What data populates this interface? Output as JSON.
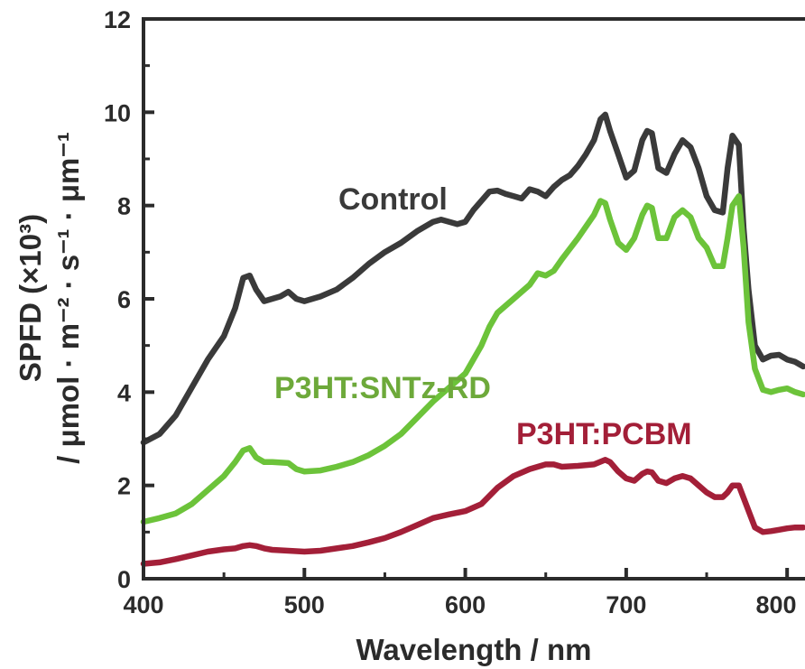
{
  "chart_data": {
    "type": "line",
    "xlabel": "Wavelength / nm",
    "ylabel_line1": "SPFD (×10³)",
    "ylabel_line2": "/ μmol · m⁻² · s⁻¹ · μm⁻¹",
    "xlim": [
      400,
      810
    ],
    "ylim": [
      0,
      12
    ],
    "xticks": [
      400,
      500,
      600,
      700,
      800
    ],
    "yticks": [
      0,
      2,
      4,
      6,
      8,
      10,
      12
    ],
    "xtick_labels": [
      "400",
      "500",
      "600",
      "700",
      "800"
    ],
    "ytick_labels": [
      "0",
      "2",
      "4",
      "6",
      "8",
      "10",
      "12"
    ],
    "grid": false,
    "series": [
      {
        "name": "Control",
        "color": "#3a3a3a",
        "x": [
          400,
          410,
          420,
          430,
          440,
          450,
          457,
          462,
          466,
          470,
          475,
          480,
          485,
          490,
          495,
          500,
          510,
          520,
          530,
          540,
          550,
          560,
          570,
          580,
          585,
          590,
          595,
          600,
          605,
          610,
          615,
          620,
          625,
          630,
          635,
          640,
          645,
          650,
          655,
          660,
          665,
          670,
          675,
          680,
          684,
          687,
          690,
          695,
          700,
          705,
          710,
          713,
          716,
          720,
          725,
          730,
          735,
          740,
          745,
          750,
          755,
          760,
          763,
          766,
          770,
          773,
          776,
          780,
          785,
          790,
          795,
          800,
          805,
          810
        ],
        "y": [
          2.92,
          3.1,
          3.5,
          4.1,
          4.7,
          5.2,
          5.8,
          6.45,
          6.5,
          6.2,
          5.95,
          6.0,
          6.05,
          6.15,
          6.0,
          5.95,
          6.05,
          6.2,
          6.45,
          6.75,
          7.0,
          7.2,
          7.45,
          7.65,
          7.7,
          7.65,
          7.6,
          7.65,
          7.9,
          8.1,
          8.3,
          8.32,
          8.25,
          8.2,
          8.15,
          8.35,
          8.3,
          8.2,
          8.4,
          8.55,
          8.65,
          8.85,
          9.1,
          9.4,
          9.85,
          9.95,
          9.6,
          9.1,
          8.6,
          8.75,
          9.4,
          9.6,
          9.55,
          8.8,
          8.7,
          9.1,
          9.4,
          9.25,
          8.8,
          8.2,
          7.9,
          7.85,
          8.8,
          9.5,
          9.3,
          7.5,
          6.2,
          5.0,
          4.7,
          4.78,
          4.8,
          4.7,
          4.65,
          4.55
        ]
      },
      {
        "name": "P3HT:SNTz-RD",
        "color": "#6cc33a",
        "x": [
          400,
          410,
          420,
          430,
          440,
          450,
          457,
          462,
          466,
          470,
          475,
          480,
          490,
          495,
          500,
          510,
          520,
          530,
          540,
          550,
          560,
          570,
          580,
          590,
          600,
          610,
          615,
          620,
          630,
          640,
          645,
          650,
          655,
          660,
          670,
          680,
          684,
          687,
          690,
          695,
          700,
          705,
          710,
          713,
          716,
          720,
          725,
          730,
          735,
          740,
          745,
          750,
          755,
          760,
          763,
          766,
          770,
          773,
          776,
          780,
          785,
          790,
          795,
          800,
          805,
          810
        ],
        "y": [
          1.22,
          1.3,
          1.4,
          1.6,
          1.9,
          2.2,
          2.5,
          2.75,
          2.8,
          2.6,
          2.5,
          2.5,
          2.48,
          2.35,
          2.3,
          2.32,
          2.4,
          2.5,
          2.65,
          2.85,
          3.1,
          3.45,
          3.8,
          4.1,
          4.4,
          5.0,
          5.4,
          5.7,
          6.0,
          6.3,
          6.55,
          6.5,
          6.6,
          6.85,
          7.3,
          7.8,
          8.1,
          8.05,
          7.7,
          7.2,
          7.05,
          7.3,
          7.8,
          8.0,
          7.95,
          7.3,
          7.3,
          7.75,
          7.9,
          7.75,
          7.3,
          7.1,
          6.7,
          6.7,
          7.3,
          8.0,
          8.2,
          7.1,
          5.5,
          4.5,
          4.05,
          4.0,
          4.05,
          4.08,
          4.0,
          3.95
        ]
      },
      {
        "name": "P3HT:PCBM",
        "color": "#a31f38",
        "x": [
          400,
          410,
          420,
          430,
          440,
          450,
          457,
          462,
          466,
          470,
          475,
          480,
          490,
          500,
          510,
          520,
          530,
          540,
          550,
          560,
          570,
          580,
          590,
          600,
          610,
          620,
          630,
          640,
          650,
          655,
          660,
          670,
          680,
          687,
          690,
          695,
          700,
          705,
          710,
          713,
          716,
          720,
          725,
          730,
          735,
          740,
          745,
          750,
          755,
          760,
          763,
          766,
          770,
          775,
          780,
          785,
          790,
          795,
          800,
          805,
          810
        ],
        "y": [
          0.32,
          0.35,
          0.42,
          0.5,
          0.58,
          0.63,
          0.65,
          0.7,
          0.72,
          0.7,
          0.65,
          0.62,
          0.6,
          0.58,
          0.6,
          0.65,
          0.7,
          0.78,
          0.87,
          1.0,
          1.15,
          1.3,
          1.38,
          1.45,
          1.6,
          1.95,
          2.2,
          2.35,
          2.45,
          2.45,
          2.4,
          2.42,
          2.45,
          2.55,
          2.5,
          2.3,
          2.15,
          2.1,
          2.25,
          2.3,
          2.28,
          2.1,
          2.05,
          2.15,
          2.2,
          2.15,
          2.0,
          1.85,
          1.75,
          1.75,
          1.85,
          2.0,
          2.0,
          1.55,
          1.1,
          1.0,
          1.02,
          1.05,
          1.08,
          1.1,
          1.1
        ]
      }
    ]
  }
}
